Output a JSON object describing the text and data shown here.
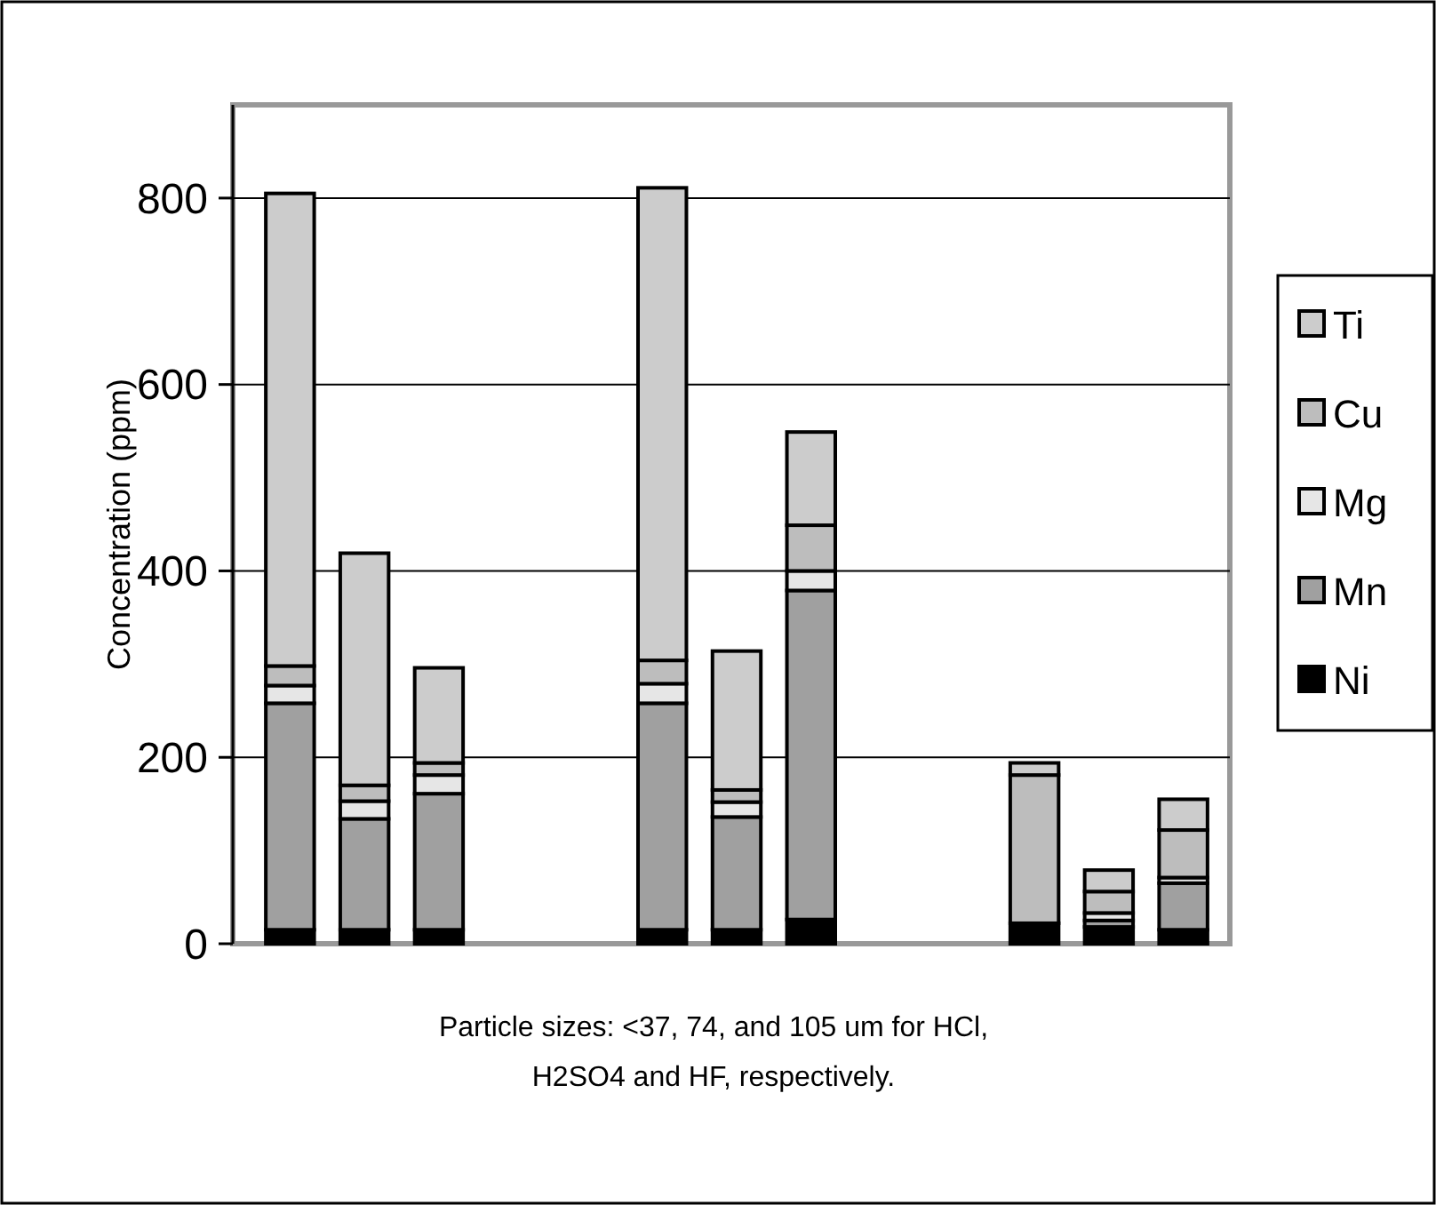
{
  "chart_data": {
    "type": "bar",
    "stacked": true,
    "ylabel": "Concentration (ppm)",
    "xlabel": "Particle sizes: <37, 74, and 105 um for HCl, H2SO4 and HF, respectively.",
    "categories": [
      null,
      null,
      null,
      null,
      null,
      null,
      null,
      null,
      null,
      null,
      null,
      null,
      null
    ],
    "series": [
      {
        "name": "Ni",
        "color": "#000000",
        "values": [
          15,
          15,
          15,
          null,
          null,
          15,
          15,
          26,
          null,
          null,
          22,
          18,
          15
        ]
      },
      {
        "name": "Mn",
        "color": "#a0a0a0",
        "values": [
          243,
          119,
          146,
          null,
          null,
          243,
          121,
          353,
          null,
          null,
          null,
          7,
          50
        ]
      },
      {
        "name": "Mg",
        "color": "#e6e6e6",
        "values": [
          19,
          19,
          20,
          null,
          null,
          21,
          16,
          21,
          null,
          null,
          null,
          8,
          6
        ]
      },
      {
        "name": "Cu",
        "color": "#bdbdbd",
        "values": [
          21,
          17,
          13,
          null,
          null,
          25,
          13,
          49,
          null,
          null,
          159,
          23,
          51
        ]
      },
      {
        "name": "Ti",
        "color": "#cccccc",
        "values": [
          507,
          249,
          102,
          null,
          null,
          507,
          149,
          100,
          null,
          null,
          13,
          23,
          33
        ]
      }
    ],
    "ylim": [
      0,
      900
    ],
    "yticks": [
      0,
      200,
      400,
      600,
      800
    ],
    "grid": "y",
    "legend": "right"
  }
}
